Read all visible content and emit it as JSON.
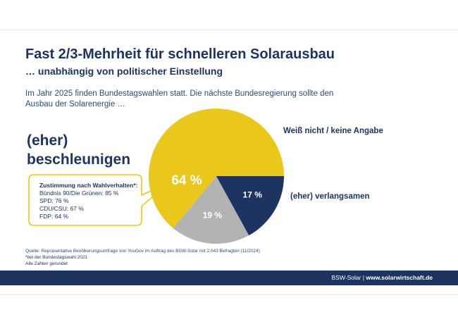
{
  "header": {
    "title": "Fast 2/3-Mehrheit für schnelleren Solarausbau",
    "subtitle": "… unabhängig von politischer Einstellung",
    "intro": "Im Jahr 2025 finden Bundestagswahlen statt. Die nächste Bundesregierung sollte den Ausbau der Solarenergie …"
  },
  "labels": {
    "accelerate_line1": "(eher)",
    "accelerate_line2": "beschleunigen",
    "unknown": "Weiß nicht / keine Angabe",
    "slow": "(eher) verlangsamen"
  },
  "callout": {
    "heading": "Zustimmung nach Wahlverhalten*:",
    "lines": [
      "Bündnis 90/Die Grünen: 85 %",
      "SPD: 76 %",
      "CDU/CSU: 67 %",
      "FDP: 64 %"
    ]
  },
  "footnotes": {
    "source": "Quelle: Repräsentative Bevölkerungsumfrage von YouGov im Auftrag des BSW-Solar mit 2.043 Befragten (11/2024)",
    "note1": "*bei der Bundestagswahl 2021",
    "note2": "Alle Zahlen gerundet"
  },
  "footer": {
    "brand": "BSW-Solar",
    "separator": " | ",
    "url": "www.solarwirtschaft.de"
  },
  "chart_data": {
    "type": "pie",
    "slices": [
      {
        "label": "(eher) beschleunigen",
        "value": 64,
        "display": "64 %",
        "color": "#eac81b"
      },
      {
        "label": "Weiß nicht / keine Angabe",
        "value": 19,
        "display": "19 %",
        "color": "#b3b3b3"
      },
      {
        "label": "(eher) verlangsamen",
        "value": 17,
        "display": "17 %",
        "color": "#1d3461"
      }
    ],
    "start_angle_deg": 0,
    "direction": "counterclockwise",
    "colors": {
      "accent": "#eac81b",
      "navy": "#1d3461",
      "grey": "#b3b3b3"
    }
  }
}
